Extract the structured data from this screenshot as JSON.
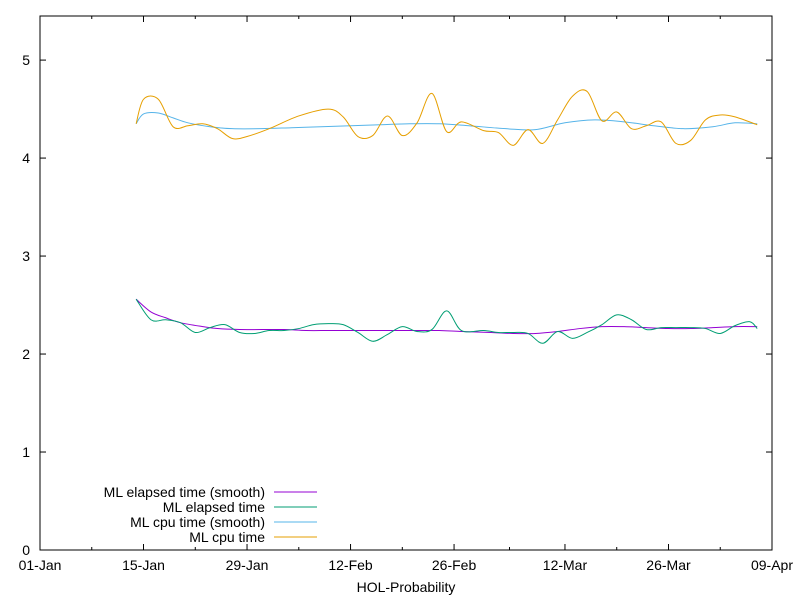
{
  "chart_data": {
    "type": "line",
    "xlabel": "HOL-Probability",
    "ylabel": "",
    "x_ticks": [
      "01-Jan",
      "15-Jan",
      "29-Jan",
      "12-Feb",
      "26-Feb",
      "12-Mar",
      "26-Mar",
      "09-Apr"
    ],
    "y_ticks": [
      "0",
      "1",
      "2",
      "3",
      "4",
      "5"
    ],
    "xlim": [
      "01-Jan",
      "09-Apr"
    ],
    "ylim": [
      0,
      5.45
    ],
    "grid": false,
    "legend_position": "bottom-left",
    "series": [
      {
        "name": "ML elapsed time (smooth)",
        "color": "#9400d3",
        "x": [
          "14-Jan",
          "16-Jan",
          "18-Jan",
          "20-Jan",
          "23-Jan",
          "25-Jan",
          "28-Jan",
          "31-Jan",
          "03-Feb",
          "06-Feb",
          "09-Feb",
          "12-Feb",
          "15-Feb",
          "18-Feb",
          "21-Feb",
          "24-Feb",
          "27-Feb",
          "02-Mar",
          "05-Mar",
          "08-Mar",
          "11-Mar",
          "14-Mar",
          "17-Mar",
          "20-Mar",
          "23-Mar",
          "26-Mar",
          "29-Mar",
          "01-Apr",
          "04-Apr",
          "07-Apr"
        ],
        "values": [
          2.56,
          2.43,
          2.37,
          2.32,
          2.28,
          2.26,
          2.25,
          2.25,
          2.25,
          2.24,
          2.24,
          2.24,
          2.24,
          2.24,
          2.24,
          2.24,
          2.23,
          2.22,
          2.21,
          2.21,
          2.23,
          2.26,
          2.28,
          2.28,
          2.27,
          2.26,
          2.26,
          2.27,
          2.28,
          2.28
        ]
      },
      {
        "name": "ML elapsed time",
        "color": "#009e73",
        "x": [
          "14-Jan",
          "16-Jan",
          "18-Jan",
          "20-Jan",
          "22-Jan",
          "24-Jan",
          "26-Jan",
          "28-Jan",
          "30-Jan",
          "01-Feb",
          "03-Feb",
          "05-Feb",
          "07-Feb",
          "09-Feb",
          "11-Feb",
          "13-Feb",
          "15-Feb",
          "17-Feb",
          "19-Feb",
          "21-Feb",
          "23-Feb",
          "25-Feb",
          "27-Feb",
          "01-Mar",
          "03-Mar",
          "05-Mar",
          "07-Mar",
          "09-Mar",
          "11-Mar",
          "13-Mar",
          "15-Mar",
          "17-Mar",
          "19-Mar",
          "21-Mar",
          "23-Mar",
          "25-Mar",
          "27-Mar",
          "29-Mar",
          "31-Mar",
          "02-Apr",
          "04-Apr",
          "06-Apr",
          "07-Apr"
        ],
        "values": [
          2.56,
          2.35,
          2.35,
          2.32,
          2.22,
          2.27,
          2.3,
          2.22,
          2.21,
          2.24,
          2.24,
          2.26,
          2.3,
          2.31,
          2.3,
          2.22,
          2.13,
          2.2,
          2.28,
          2.23,
          2.25,
          2.44,
          2.24,
          2.24,
          2.22,
          2.22,
          2.21,
          2.11,
          2.23,
          2.16,
          2.22,
          2.3,
          2.4,
          2.35,
          2.25,
          2.27,
          2.27,
          2.27,
          2.26,
          2.21,
          2.29,
          2.33,
          2.26
        ]
      },
      {
        "name": "ML cpu time (smooth)",
        "color": "#56b4e9",
        "x": [
          "14-Jan",
          "15-Jan",
          "17-Jan",
          "19-Jan",
          "21-Jan",
          "24-Jan",
          "27-Jan",
          "31-Jan",
          "04-Feb",
          "08-Feb",
          "12-Feb",
          "16-Feb",
          "20-Feb",
          "24-Feb",
          "28-Feb",
          "04-Mar",
          "08-Mar",
          "12-Mar",
          "16-Mar",
          "20-Mar",
          "24-Mar",
          "28-Mar",
          "01-Apr",
          "04-Apr",
          "07-Apr"
        ],
        "values": [
          4.35,
          4.45,
          4.46,
          4.41,
          4.36,
          4.32,
          4.3,
          4.3,
          4.31,
          4.32,
          4.33,
          4.34,
          4.35,
          4.35,
          4.33,
          4.3,
          4.29,
          4.36,
          4.39,
          4.37,
          4.33,
          4.3,
          4.32,
          4.36,
          4.35
        ]
      },
      {
        "name": "ML cpu time",
        "color": "#e69f00",
        "x": [
          "14-Jan",
          "15-Jan",
          "17-Jan",
          "19-Jan",
          "21-Jan",
          "23-Jan",
          "25-Jan",
          "27-Jan",
          "29-Jan",
          "01-Feb",
          "05-Feb",
          "09-Feb",
          "11-Feb",
          "13-Feb",
          "15-Feb",
          "17-Feb",
          "19-Feb",
          "21-Feb",
          "23-Feb",
          "25-Feb",
          "27-Feb",
          "01-Mar",
          "03-Mar",
          "05-Mar",
          "07-Mar",
          "09-Mar",
          "11-Mar",
          "13-Mar",
          "15-Mar",
          "17-Mar",
          "19-Mar",
          "21-Mar",
          "23-Mar",
          "25-Mar",
          "27-Mar",
          "29-Mar",
          "31-Mar",
          "02-Apr",
          "04-Apr",
          "07-Apr"
        ],
        "values": [
          4.35,
          4.6,
          4.6,
          4.32,
          4.33,
          4.35,
          4.3,
          4.2,
          4.22,
          4.3,
          4.43,
          4.5,
          4.42,
          4.22,
          4.23,
          4.43,
          4.23,
          4.36,
          4.66,
          4.27,
          4.37,
          4.28,
          4.26,
          4.13,
          4.29,
          4.15,
          4.39,
          4.63,
          4.68,
          4.38,
          4.47,
          4.3,
          4.33,
          4.37,
          4.15,
          4.18,
          4.39,
          4.44,
          4.42,
          4.34
        ]
      }
    ]
  }
}
